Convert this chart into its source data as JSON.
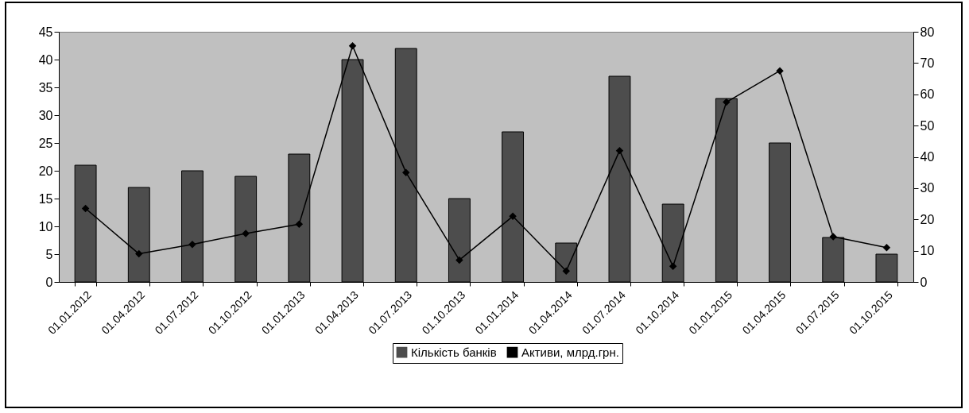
{
  "chart_data": {
    "type": "bar",
    "categories": [
      "01.01.2012",
      "01.04.2012",
      "01.07.2012",
      "01.10.2012",
      "01.01.2013",
      "01.04.2013",
      "01.07.2013",
      "01.10.2013",
      "01.01.2014",
      "01.04.2014",
      "01.07.2014",
      "01.10.2014",
      "01.01.2015",
      "01.04.2015",
      "01.07.2015",
      "01.10.2015"
    ],
    "series": [
      {
        "name": "Кількість банків",
        "color": "#4d4d4d",
        "values": [
          21,
          17,
          20,
          19,
          23,
          40,
          42,
          15,
          27,
          7,
          37,
          14,
          33,
          25,
          8,
          5
        ]
      },
      {
        "name": "Активи, млрд.грн.",
        "type": "line",
        "axis": "y2",
        "color": "#000000",
        "values": [
          23.5,
          9,
          12,
          15.5,
          18.5,
          75.5,
          35,
          7,
          21,
          3.5,
          42,
          5,
          57.5,
          67.5,
          14.5,
          11
        ]
      }
    ],
    "ylim": [
      0,
      45
    ],
    "yticks": [
      0,
      5,
      10,
      15,
      20,
      25,
      30,
      35,
      40,
      45
    ],
    "y2lim": [
      0,
      80
    ],
    "y2ticks": [
      0,
      10,
      20,
      30,
      40,
      50,
      60,
      70,
      80
    ],
    "grid": false,
    "legend": "bottom",
    "marker": "diamond",
    "line_style": "solid"
  }
}
